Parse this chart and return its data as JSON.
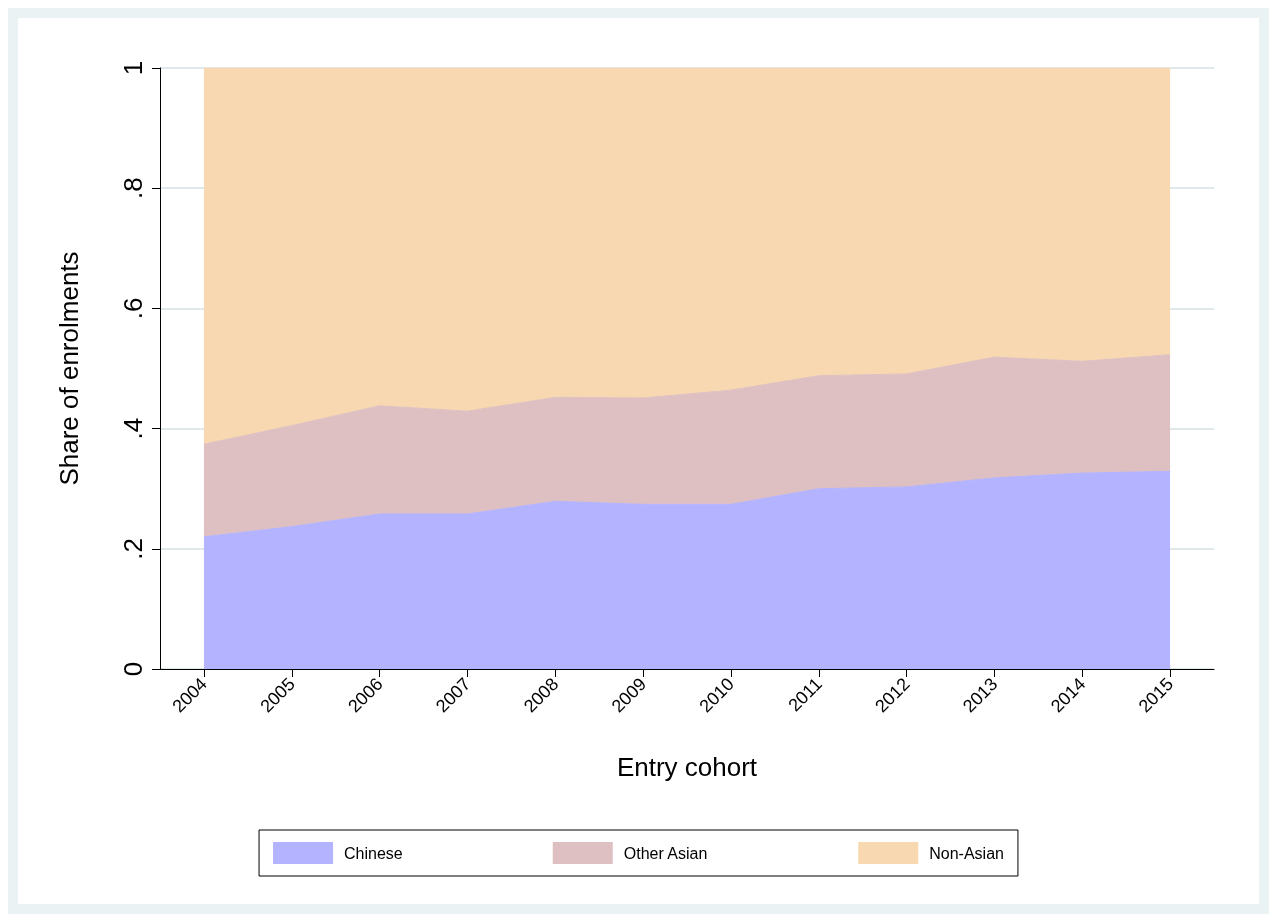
{
  "chart_data": {
    "type": "area",
    "stacked": true,
    "xlabel": "Entry cohort",
    "ylabel": "Share of enrolments",
    "categories": [
      "2004",
      "2005",
      "2006",
      "2007",
      "2008",
      "2009",
      "2010",
      "2011",
      "2012",
      "2013",
      "2014",
      "2015"
    ],
    "series": [
      {
        "name": "Chinese",
        "color": "#b3b3ff",
        "values": [
          0.22,
          0.237,
          0.258,
          0.258,
          0.279,
          0.274,
          0.274,
          0.3,
          0.303,
          0.318,
          0.326,
          0.329
        ]
      },
      {
        "name": "Other Asian",
        "color": "#dfc0c2",
        "values": [
          0.154,
          0.168,
          0.18,
          0.171,
          0.173,
          0.177,
          0.19,
          0.188,
          0.188,
          0.201,
          0.186,
          0.194
        ]
      },
      {
        "name": "Non-Asian",
        "color": "#f7d8b1",
        "values": [
          0.626,
          0.595,
          0.562,
          0.571,
          0.548,
          0.549,
          0.536,
          0.512,
          0.509,
          0.481,
          0.488,
          0.477
        ]
      }
    ],
    "ylim": [
      0,
      1
    ],
    "yticks": [
      0,
      {
        "value": 0.2,
        "label": ".2"
      },
      {
        "value": 0.4,
        "label": ".4"
      },
      {
        "value": 0.6,
        "label": ".6"
      },
      {
        "value": 0.8,
        "label": ".8"
      },
      1
    ],
    "grid": "y",
    "legend": "bottom",
    "marker": "none"
  }
}
